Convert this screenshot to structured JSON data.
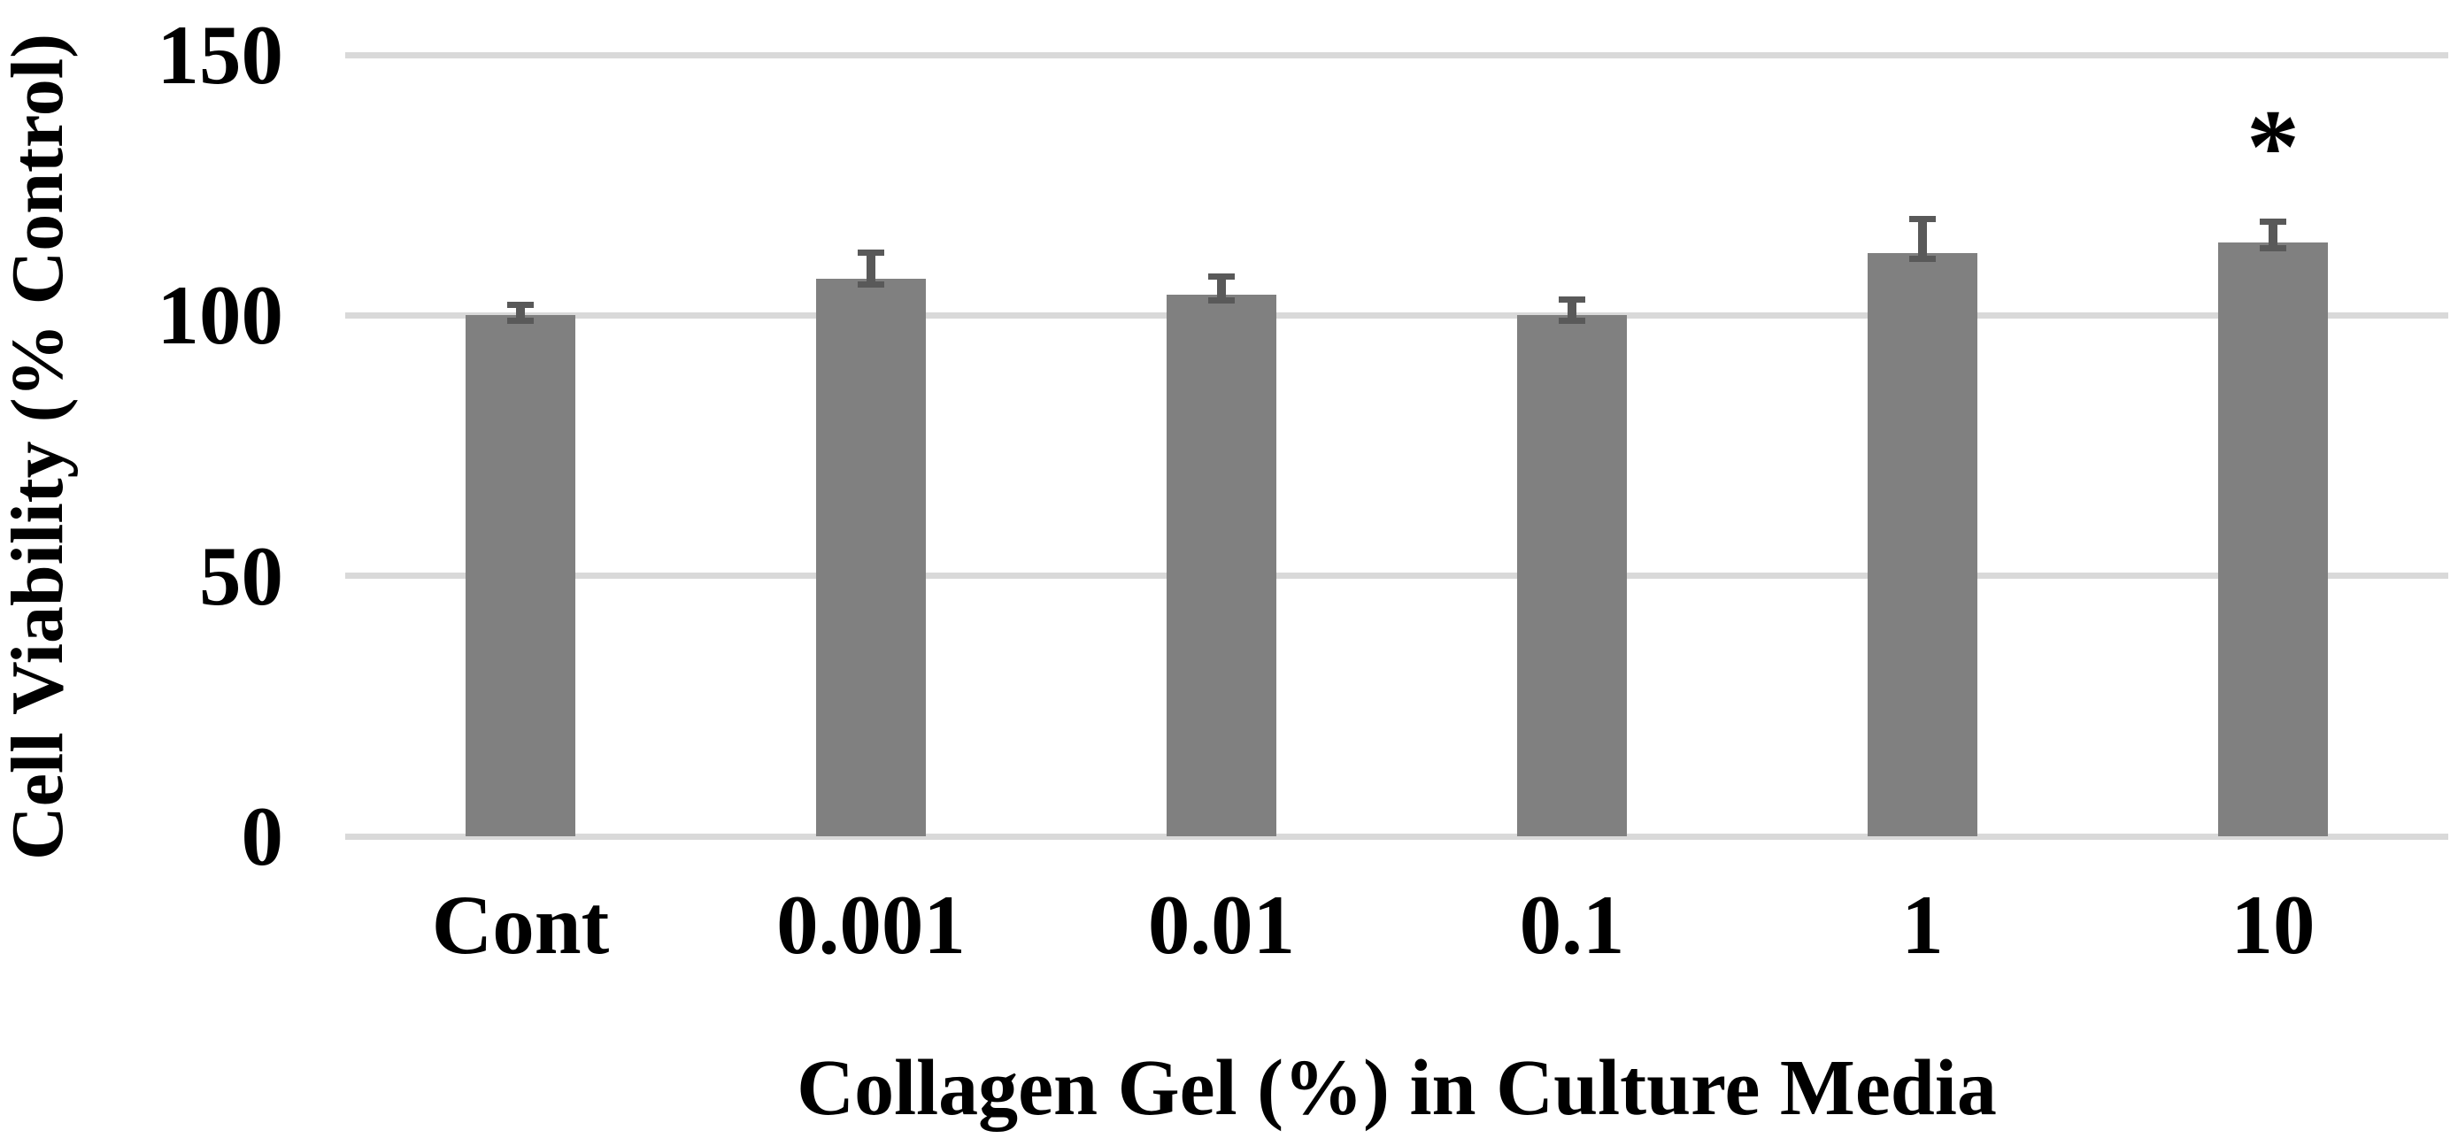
{
  "chart_data": {
    "type": "bar",
    "xlabel": "Collagen Gel (%) in Culture Media",
    "ylabel": "Cell Viability (% Control)",
    "categories": [
      "Cont",
      "0.001",
      "0.01",
      "0.1",
      "1",
      "10"
    ],
    "values": [
      100,
      107,
      104,
      100,
      112,
      114
    ],
    "errors": [
      2,
      5,
      3.5,
      3,
      6.5,
      4
    ],
    "annotations": [
      {
        "category": "10",
        "text": "*"
      }
    ],
    "yticks": [
      0,
      50,
      100,
      150
    ],
    "ylim": [
      0,
      150
    ],
    "grid": true,
    "legend_position": "none",
    "bar_color": "#808080",
    "error_bar_color": "#595959",
    "gridline_color": "#d9d9d9",
    "text_color": "#000000"
  }
}
